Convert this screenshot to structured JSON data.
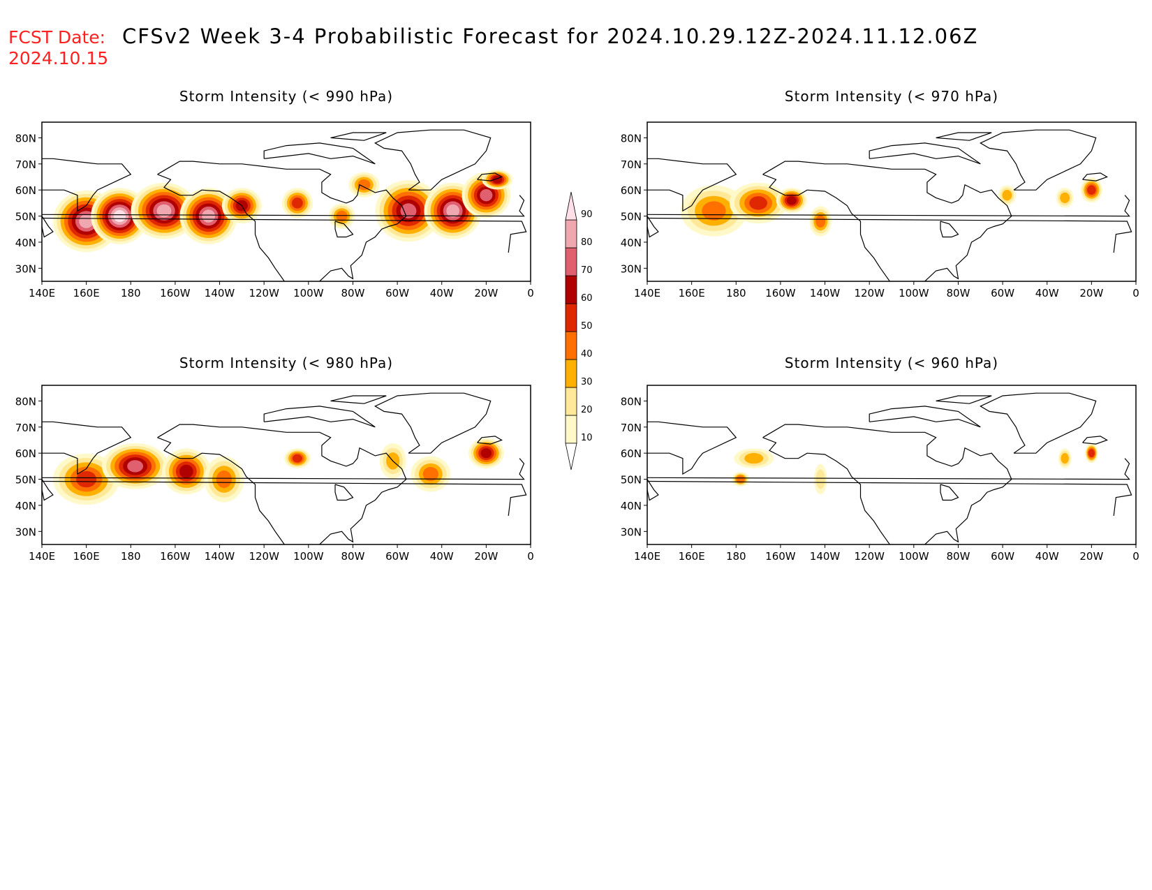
{
  "header": {
    "fcst_label": "FCST Date:",
    "fcst_date": "2024.10.15",
    "title": "CFSv2 Week 3-4 Probabilistic Forecast for 2024.10.29.12Z-2024.11.12.06Z"
  },
  "axes": {
    "lat_labels": [
      "80N",
      "70N",
      "60N",
      "50N",
      "40N",
      "30N"
    ],
    "lon_labels": [
      "140E",
      "160E",
      "180",
      "160W",
      "140W",
      "120W",
      "100W",
      "80W",
      "60W",
      "40W",
      "20W",
      "0"
    ]
  },
  "colorbar": {
    "levels": [
      "10",
      "20",
      "30",
      "40",
      "50",
      "60",
      "70",
      "80",
      "90"
    ],
    "colors": [
      "#fff8c8",
      "#ffe898",
      "#ffb000",
      "#ff7000",
      "#e02800",
      "#b00000",
      "#e06070",
      "#f0a8b0",
      "#ffe0e8"
    ]
  },
  "panels": [
    {
      "title": "Storm Intensity (< 990 hPa)",
      "blobs": [
        {
          "lon": 160,
          "lat": 48,
          "rx": 14,
          "ry": 11,
          "level": 7
        },
        {
          "lon": 175,
          "lat": 50,
          "rx": 12,
          "ry": 10,
          "level": 8
        },
        {
          "lon": -165,
          "lat": 52,
          "rx": 14,
          "ry": 10,
          "level": 7
        },
        {
          "lon": -145,
          "lat": 50,
          "rx": 12,
          "ry": 10,
          "level": 7
        },
        {
          "lon": -130,
          "lat": 54,
          "rx": 8,
          "ry": 6,
          "level": 5
        },
        {
          "lon": -105,
          "lat": 55,
          "rx": 6,
          "ry": 5,
          "level": 4
        },
        {
          "lon": -85,
          "lat": 50,
          "rx": 5,
          "ry": 4,
          "level": 3
        },
        {
          "lon": -75,
          "lat": 62,
          "rx": 6,
          "ry": 4,
          "level": 3
        },
        {
          "lon": -55,
          "lat": 52,
          "rx": 14,
          "ry": 11,
          "level": 6
        },
        {
          "lon": -35,
          "lat": 52,
          "rx": 12,
          "ry": 10,
          "level": 7
        },
        {
          "lon": -20,
          "lat": 58,
          "rx": 10,
          "ry": 8,
          "level": 6
        },
        {
          "lon": -15,
          "lat": 64,
          "rx": 6,
          "ry": 3,
          "level": 5
        }
      ]
    },
    {
      "title": "Storm Intensity (< 970 hPa)",
      "blobs": [
        {
          "lon": 170,
          "lat": 52,
          "rx": 14,
          "ry": 9,
          "level": 3
        },
        {
          "lon": -170,
          "lat": 55,
          "rx": 12,
          "ry": 7,
          "level": 4
        },
        {
          "lon": -155,
          "lat": 56,
          "rx": 6,
          "ry": 4,
          "level": 5
        },
        {
          "lon": -142,
          "lat": 48,
          "rx": 4,
          "ry": 5,
          "level": 3
        },
        {
          "lon": -58,
          "lat": 58,
          "rx": 3,
          "ry": 3,
          "level": 2
        },
        {
          "lon": -32,
          "lat": 57,
          "rx": 3,
          "ry": 3,
          "level": 2
        },
        {
          "lon": -20,
          "lat": 60,
          "rx": 4,
          "ry": 4,
          "level": 4
        }
      ]
    },
    {
      "title": "Storm Intensity (< 980 hPa)",
      "blobs": [
        {
          "lon": 160,
          "lat": 50,
          "rx": 14,
          "ry": 9,
          "level": 4
        },
        {
          "lon": -178,
          "lat": 55,
          "rx": 14,
          "ry": 8,
          "level": 6
        },
        {
          "lon": -155,
          "lat": 53,
          "rx": 10,
          "ry": 8,
          "level": 5
        },
        {
          "lon": -138,
          "lat": 50,
          "rx": 8,
          "ry": 8,
          "level": 3
        },
        {
          "lon": -105,
          "lat": 58,
          "rx": 5,
          "ry": 3,
          "level": 4
        },
        {
          "lon": -62,
          "lat": 57,
          "rx": 5,
          "ry": 6,
          "level": 2
        },
        {
          "lon": -45,
          "lat": 52,
          "rx": 8,
          "ry": 6,
          "level": 3
        },
        {
          "lon": -20,
          "lat": 60,
          "rx": 7,
          "ry": 5,
          "level": 5
        }
      ]
    },
    {
      "title": "Storm Intensity (< 960 hPa)",
      "blobs": [
        {
          "lon": -172,
          "lat": 58,
          "rx": 8,
          "ry": 3,
          "level": 2
        },
        {
          "lon": -178,
          "lat": 50,
          "rx": 3,
          "ry": 2,
          "level": 3
        },
        {
          "lon": -142,
          "lat": 50,
          "rx": 2,
          "ry": 5,
          "level": 1
        },
        {
          "lon": -32,
          "lat": 58,
          "rx": 2,
          "ry": 3,
          "level": 2
        },
        {
          "lon": -20,
          "lat": 60,
          "rx": 2,
          "ry": 3,
          "level": 4
        }
      ]
    }
  ]
}
